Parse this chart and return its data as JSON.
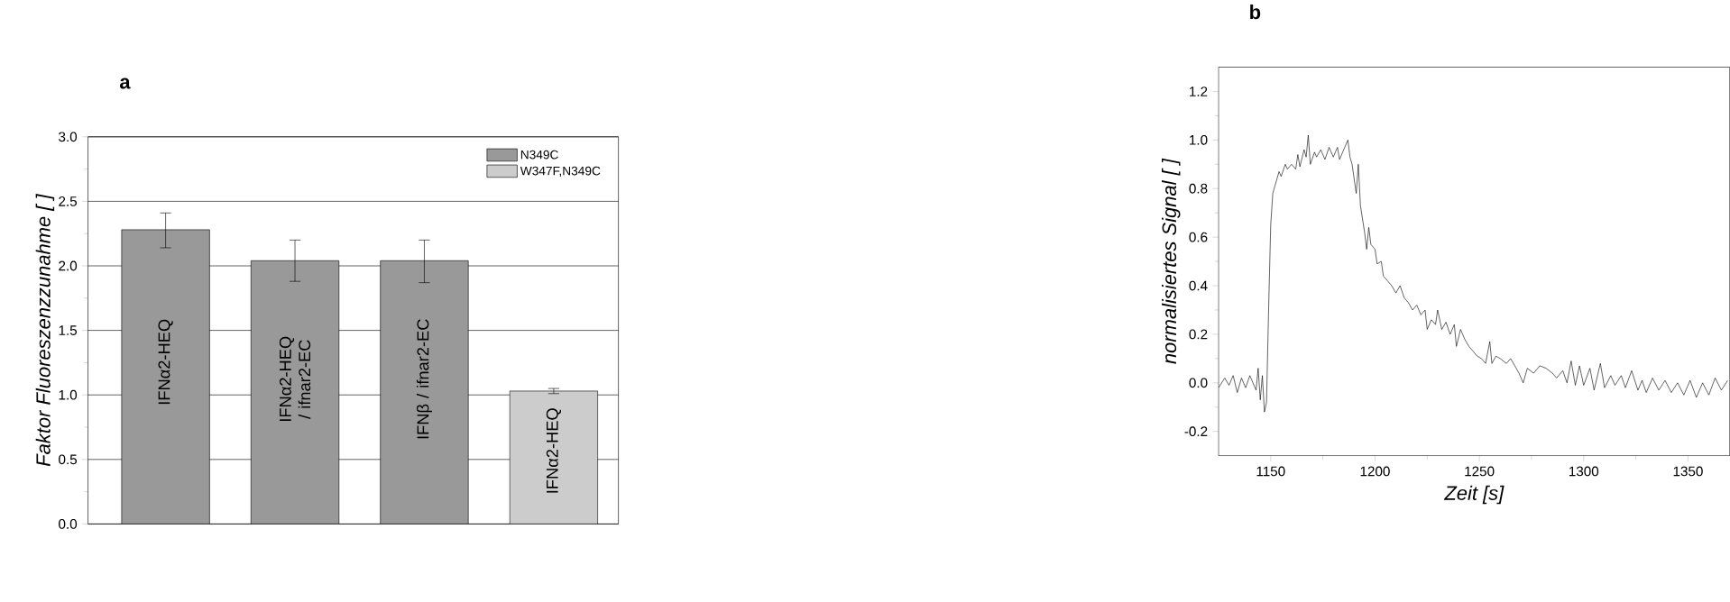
{
  "chart_data": [
    {
      "type": "bar",
      "title": "a",
      "ylabel": "Faktor Fluoreszenzzunahme [ ]",
      "categories": [
        "IFNα2-HEQ",
        "IFNα2-HEQ / ifnar2-EC",
        "IFNβ / ifnar2-EC",
        "IFNα2-HEQ"
      ],
      "series": [
        {
          "name": "N349C",
          "color": "#999999",
          "values": [
            2.28,
            2.04,
            2.04,
            null
          ],
          "errors": [
            [
              2.14,
              2.41
            ],
            [
              1.88,
              2.2
            ],
            [
              1.87,
              2.2
            ],
            null
          ]
        },
        {
          "name": "W347F,N349C",
          "color": "#cccccc",
          "values": [
            null,
            null,
            null,
            1.03
          ],
          "errors": [
            null,
            null,
            null,
            0.02
          ]
        }
      ],
      "ylim": [
        0,
        3
      ],
      "yticks": [
        {
          "value": 0,
          "label": "0.0"
        },
        0.5,
        {
          "value": 1,
          "label": "1.0"
        },
        1.5,
        {
          "value": 2,
          "label": "2.0"
        },
        2.5,
        {
          "value": 3,
          "label": "3.0"
        }
      ],
      "grid": "y",
      "legend": "top right"
    },
    {
      "type": "line",
      "title": "b",
      "xlabel": "Zeit [s]",
      "ylabel": "normalisiertes Signal [ ]",
      "x": [
        1125,
        1128,
        1130,
        1132,
        1134,
        1136,
        1138,
        1140,
        1143,
        1144,
        1145,
        1146,
        1147,
        1148,
        1149,
        1150,
        1151,
        1152,
        1154,
        1155,
        1157,
        1158,
        1160,
        1162,
        1163,
        1164,
        1166,
        1167,
        1168,
        1169,
        1171,
        1172,
        1174,
        1176,
        1178,
        1180,
        1182,
        1183,
        1185,
        1187,
        1188,
        1189,
        1191,
        1192,
        1193,
        1195,
        1196,
        1197,
        1198,
        1200,
        1201,
        1203,
        1204,
        1206,
        1208,
        1210,
        1212,
        1214,
        1216,
        1218,
        1220,
        1222,
        1224,
        1225,
        1227,
        1229,
        1230,
        1232,
        1234,
        1236,
        1238,
        1239,
        1241,
        1243,
        1245,
        1247,
        1249,
        1251,
        1253,
        1255,
        1256,
        1258,
        1260,
        1263,
        1265,
        1267,
        1269,
        1271,
        1273,
        1276,
        1279,
        1282,
        1285,
        1287,
        1290,
        1292,
        1294,
        1296,
        1298,
        1300,
        1303,
        1305,
        1308,
        1310,
        1313,
        1315,
        1318,
        1320,
        1323,
        1326,
        1328,
        1330,
        1333,
        1336,
        1339,
        1342,
        1345,
        1348,
        1351,
        1354,
        1357,
        1360,
        1363,
        1366,
        1369
      ],
      "series": [
        {
          "color": "#000000",
          "values": [
            -0.02,
            0.02,
            -0.01,
            0.03,
            -0.04,
            0.02,
            -0.02,
            0.03,
            -0.03,
            0.06,
            -0.07,
            0.03,
            -0.12,
            -0.08,
            0.3,
            0.65,
            0.78,
            0.81,
            0.87,
            0.85,
            0.9,
            0.88,
            0.9,
            0.88,
            0.94,
            0.89,
            0.96,
            0.93,
            1.02,
            0.9,
            0.95,
            0.93,
            0.96,
            0.92,
            0.97,
            0.93,
            0.97,
            0.92,
            0.96,
            1.0,
            0.93,
            0.9,
            0.78,
            0.9,
            0.73,
            0.62,
            0.55,
            0.64,
            0.57,
            0.55,
            0.49,
            0.5,
            0.44,
            0.42,
            0.4,
            0.37,
            0.4,
            0.35,
            0.33,
            0.3,
            0.32,
            0.28,
            0.3,
            0.22,
            0.26,
            0.24,
            0.3,
            0.22,
            0.25,
            0.2,
            0.24,
            0.15,
            0.22,
            0.18,
            0.15,
            0.13,
            0.11,
            0.1,
            0.08,
            0.17,
            0.08,
            0.11,
            0.1,
            0.08,
            0.1,
            0.07,
            0.04,
            0.0,
            0.06,
            0.04,
            0.07,
            0.06,
            0.04,
            0.02,
            0.05,
            0.0,
            0.09,
            -0.01,
            0.07,
            -0.01,
            0.06,
            -0.03,
            0.08,
            -0.02,
            0.03,
            -0.01,
            0.03,
            -0.02,
            0.05,
            -0.03,
            0.01,
            -0.04,
            0.02,
            -0.03,
            0.01,
            -0.04,
            0.0,
            -0.05,
            0.01,
            -0.06,
            0.0,
            -0.05,
            0.02,
            -0.03,
            0.01
          ]
        }
      ],
      "xlim": [
        1125,
        1370
      ],
      "ylim": [
        -0.3,
        1.3
      ],
      "xticks": [
        1150,
        1200,
        1250,
        1300,
        1350
      ],
      "yticks": [
        -0.2,
        {
          "value": 0,
          "label": "0.0"
        },
        0.2,
        0.4,
        0.6,
        0.8,
        {
          "value": 1,
          "label": "1.0"
        },
        1.2
      ],
      "marker": "none",
      "line_style": "solid"
    }
  ]
}
